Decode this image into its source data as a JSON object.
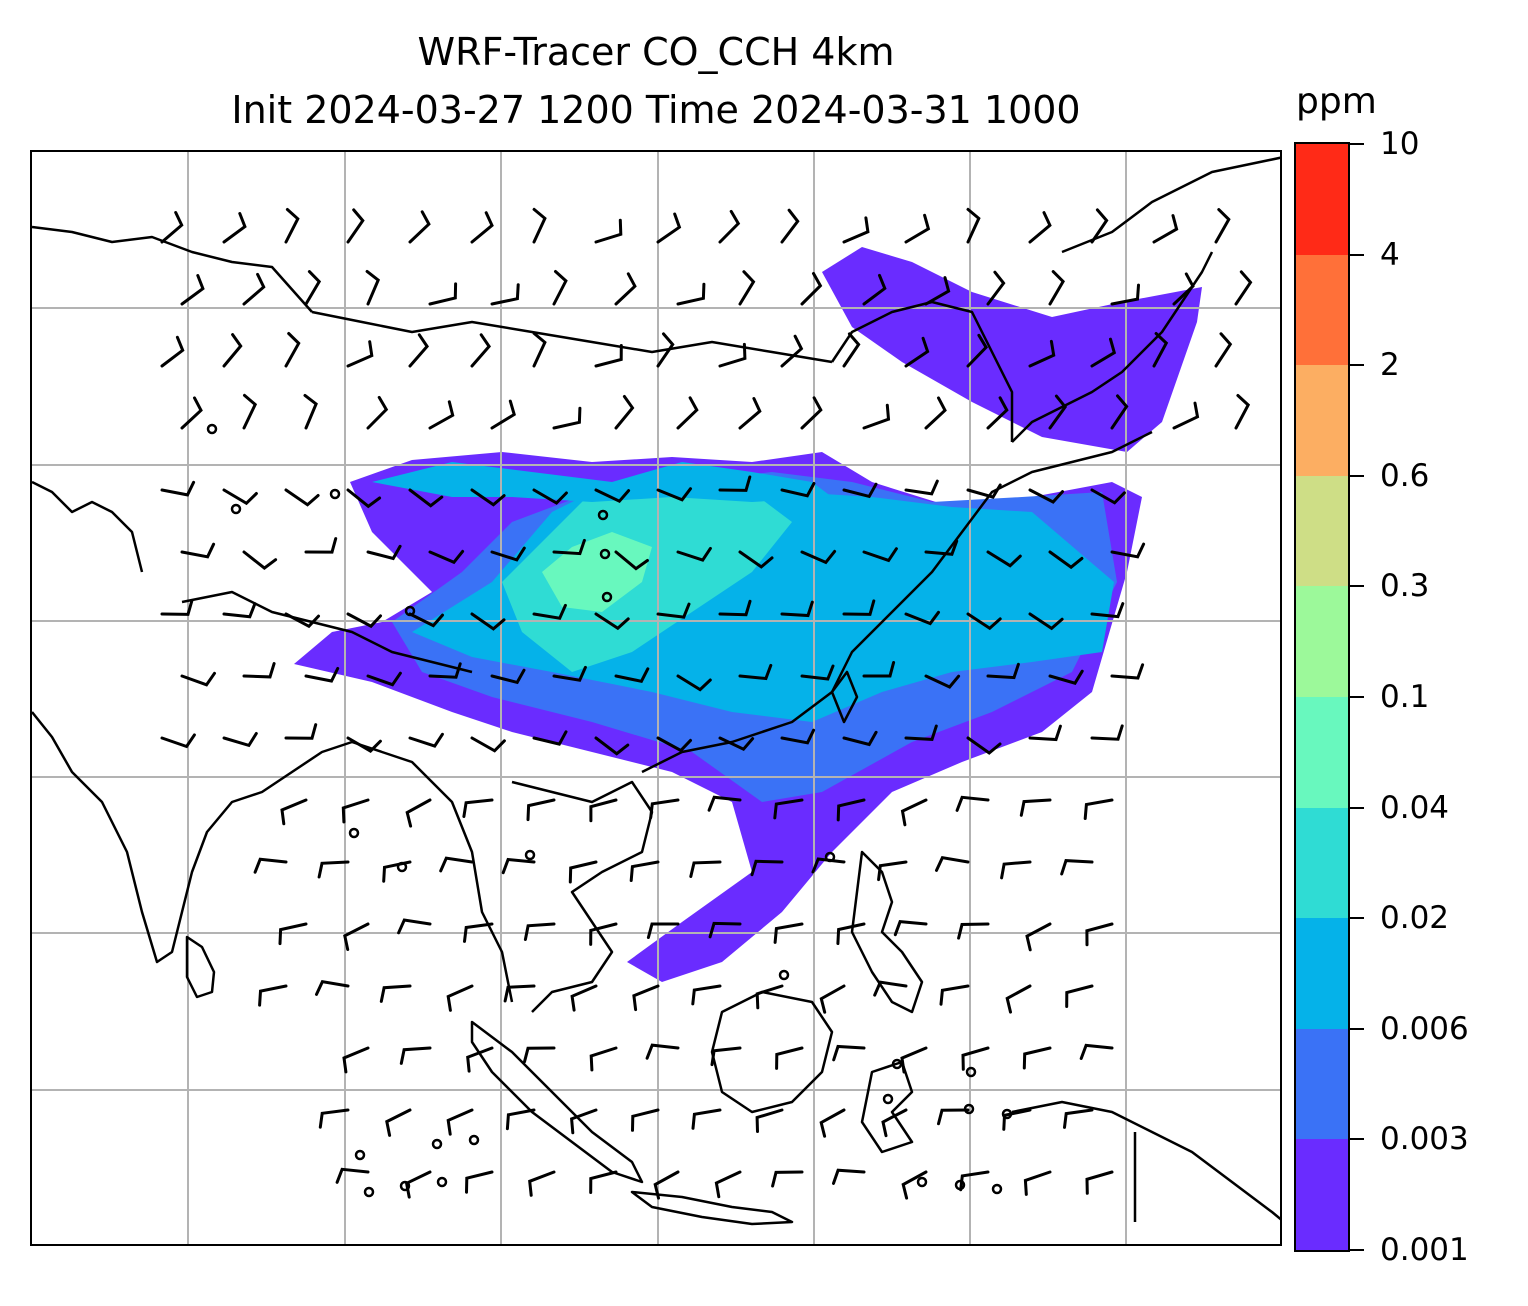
{
  "title": {
    "line1": "WRF-Tracer CO_CCH 4km",
    "line2": "Init 2024-03-27 1200 Time 2024-03-31 1000"
  },
  "colorbar": {
    "units": "ppm",
    "ticks": [
      "0.001",
      "0.003",
      "0.006",
      "0.02",
      "0.04",
      "0.1",
      "0.3",
      "0.6",
      "2",
      "4",
      "10"
    ],
    "colors": [
      "#6a2cff",
      "#3a72f6",
      "#05b2e9",
      "#2fdcd4",
      "#68f8be",
      "#9cf99a",
      "#cede86",
      "#fcae62",
      "#ff7039",
      "#ff2a17"
    ]
  },
  "map": {
    "gridlines": true,
    "grid_color": "#b3b3b3",
    "coastline_color": "#000000",
    "barb_color": "#000000"
  }
}
